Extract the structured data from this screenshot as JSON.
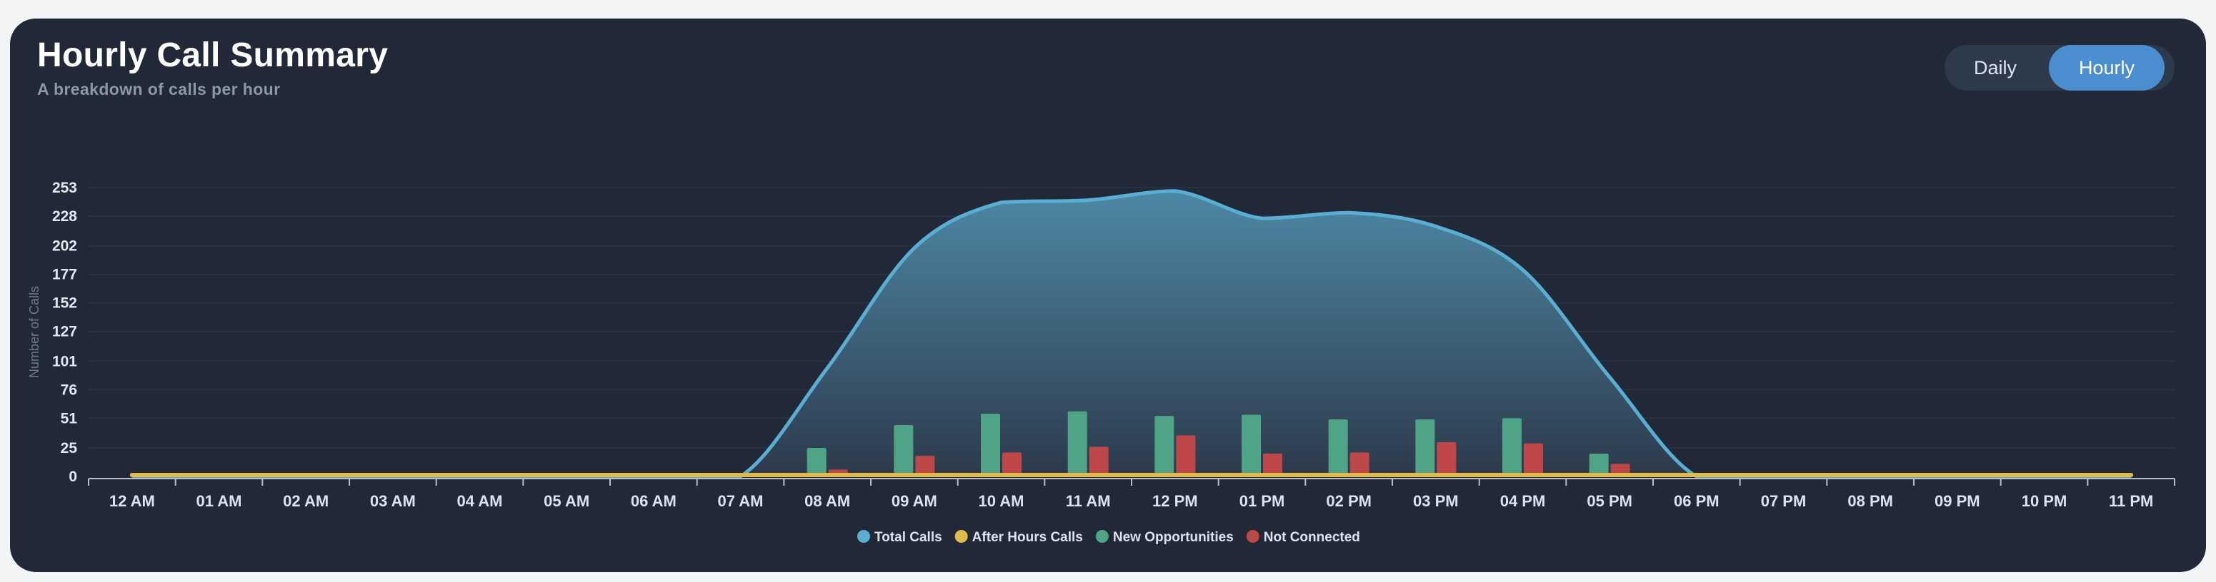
{
  "header": {
    "title": "Hourly Call Summary",
    "subtitle": "A breakdown of calls per hour"
  },
  "toggle": {
    "daily_label": "Daily",
    "hourly_label": "Hourly",
    "selected": "Hourly"
  },
  "colors": {
    "total": "#5aaed3",
    "after_hours": "#e0bb4c",
    "new_opportunities": "#4fa488",
    "not_connected": "#bd4749",
    "grid": "#2b3546",
    "axis": "#b6c0cc"
  },
  "chart_data": {
    "type": "area",
    "ylabel": "Number of Calls",
    "ylim": [
      0,
      253
    ],
    "yticks": [
      0,
      25,
      51,
      76,
      101,
      127,
      152,
      177,
      202,
      228,
      253
    ],
    "categories": [
      "12 AM",
      "01 AM",
      "02 AM",
      "03 AM",
      "04 AM",
      "05 AM",
      "06 AM",
      "07 AM",
      "08 AM",
      "09 AM",
      "10 AM",
      "11 AM",
      "12 PM",
      "01 PM",
      "02 PM",
      "03 PM",
      "04 PM",
      "05 PM",
      "06 PM",
      "07 PM",
      "08 PM",
      "09 PM",
      "10 PM",
      "11 PM"
    ],
    "grid": true,
    "legend_position": "bottom",
    "series": [
      {
        "name": "Total Calls",
        "type": "area",
        "values": [
          0,
          0,
          0,
          0,
          0,
          0,
          0,
          0,
          95,
          200,
          240,
          242,
          250,
          226,
          231,
          219,
          181,
          87,
          0,
          0,
          0,
          0,
          0,
          0
        ]
      },
      {
        "name": "After Hours Calls",
        "type": "line",
        "values": [
          0,
          0,
          0,
          0,
          0,
          0,
          0,
          0,
          0,
          0,
          0,
          0,
          0,
          0,
          0,
          0,
          0,
          0,
          0,
          0,
          0,
          0,
          0,
          0
        ]
      },
      {
        "name": "New Opportunities",
        "type": "bar",
        "values": [
          0,
          0,
          0,
          0,
          0,
          0,
          0,
          0,
          25,
          45,
          55,
          57,
          53,
          54,
          50,
          50,
          51,
          20,
          0,
          0,
          0,
          0,
          0,
          0
        ]
      },
      {
        "name": "Not Connected",
        "type": "bar",
        "values": [
          0,
          0,
          0,
          0,
          0,
          0,
          0,
          0,
          6,
          18,
          21,
          26,
          36,
          20,
          21,
          30,
          29,
          11,
          0,
          0,
          0,
          0,
          0,
          0
        ]
      }
    ]
  }
}
